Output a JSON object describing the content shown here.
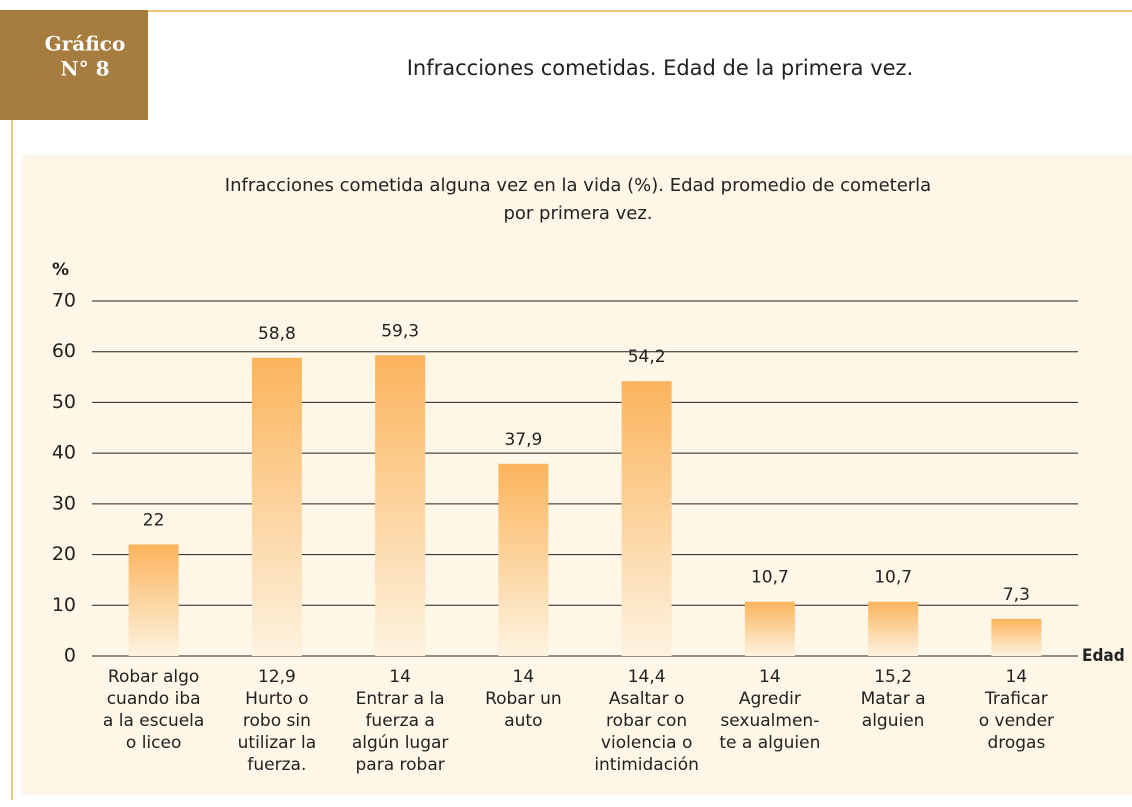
{
  "header": {
    "badge": [
      "Gráfico",
      "N° 8"
    ],
    "title": "Infracciones cometidas. Edad de la primera vez."
  },
  "chart_data": {
    "type": "bar",
    "title": [
      "Infracciones cometida alguna vez en la vida (%). Edad promedio de cometerla",
      "por primera vez."
    ],
    "y_label": "%",
    "x_label": "Edad",
    "categories": [
      [
        "Robar algo",
        "cuando iba",
        "a la escuela",
        "o liceo"
      ],
      [
        "Hurto o",
        "robo sin",
        "utilizar la",
        "fuerza."
      ],
      [
        "Entrar a la",
        "fuerza a",
        "algún lugar",
        "para robar"
      ],
      [
        "Robar un",
        "auto"
      ],
      [
        "Asaltar o",
        "robar con",
        "violencia o",
        "intimidación"
      ],
      [
        "Agredir",
        "sexualmen-",
        "te a alguien"
      ],
      [
        "Matar a",
        "alguien"
      ],
      [
        "Traficar",
        "o vender",
        "drogas"
      ]
    ],
    "age_labels": [
      null,
      "12,9",
      "14",
      "14",
      "14,4",
      "14",
      "15,2",
      "14"
    ],
    "values": [
      22,
      58.8,
      59.3,
      37.9,
      54.2,
      10.7,
      10.7,
      7.3
    ],
    "value_labels": [
      "22",
      "58,8",
      "59,3",
      "37,9",
      "54,2",
      "10,7",
      "10,7",
      "7,3"
    ],
    "color": "#fbb45c",
    "ylim": [
      0,
      70
    ],
    "yticks": [
      0,
      10,
      20,
      30,
      40,
      50,
      60,
      70
    ],
    "grid": true
  }
}
